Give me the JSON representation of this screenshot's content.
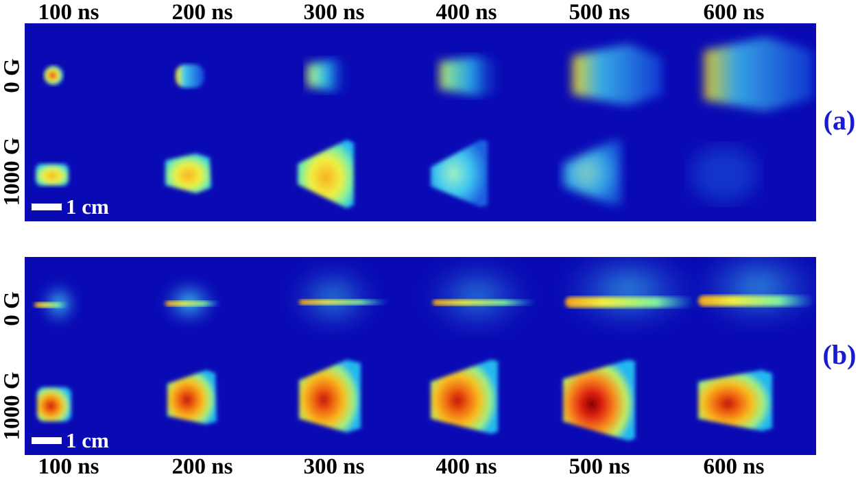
{
  "time_labels": [
    "100 ns",
    "200 ns",
    "300 ns",
    "400 ns",
    "500 ns",
    "600 ns"
  ],
  "row_labels": {
    "no_field": "0 G",
    "with_field": "1000 G"
  },
  "panel_labels": {
    "a": "(a)",
    "b": "(b)"
  },
  "scale_bar": "1 cm",
  "colors": {
    "background": "#0a0ab4",
    "colormap": [
      "#0a0ab4",
      "#1a6cf0",
      "#22c8f8",
      "#7ef0a0",
      "#f0f030",
      "#f89020",
      "#e02010",
      "#900000"
    ]
  }
}
